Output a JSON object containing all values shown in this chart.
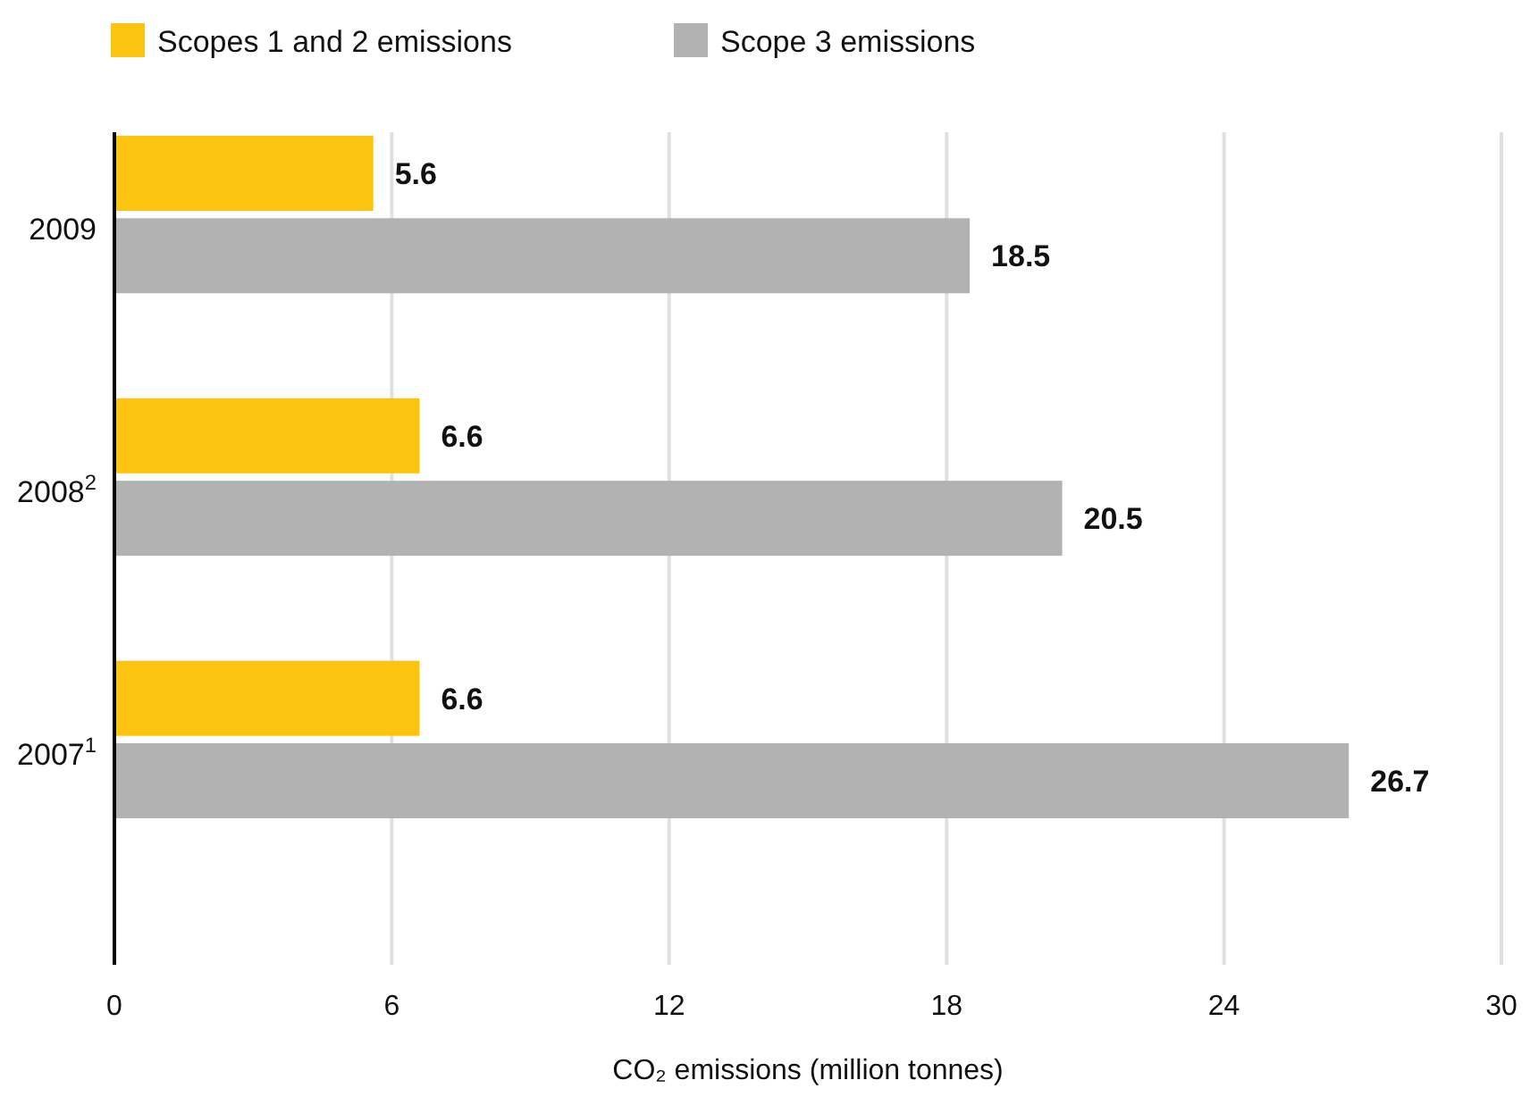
{
  "chart_data": {
    "type": "bar",
    "orientation": "horizontal",
    "categories": [
      "2009",
      "2008$^{2}$",
      "2007$^{1}$"
    ],
    "series": [
      {
        "name": "Scopes 1 and 2 emissions",
        "color": "#fdc311",
        "values": [
          5.6,
          6.6,
          6.6
        ]
      },
      {
        "name": "Scope 3 emissions",
        "color": "#b2b2b2",
        "values": [
          18.5,
          20.5,
          26.7
        ]
      }
    ],
    "xlim": [
      0,
      30
    ],
    "xticks": [
      0,
      6,
      12,
      18,
      24,
      30
    ],
    "xlabel": "CO₂ emissions (million tonnes)",
    "grid": "x",
    "legend": "top left",
    "data_labels": true
  }
}
